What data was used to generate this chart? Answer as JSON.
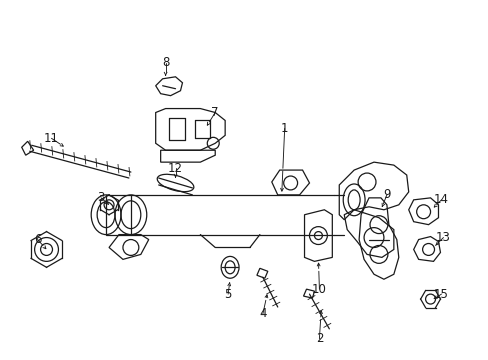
{
  "background_color": "#ffffff",
  "line_color": "#1a1a1a",
  "figsize": [
    4.89,
    3.6
  ],
  "dpi": 100,
  "lw": 0.9,
  "font_size": 8.5
}
